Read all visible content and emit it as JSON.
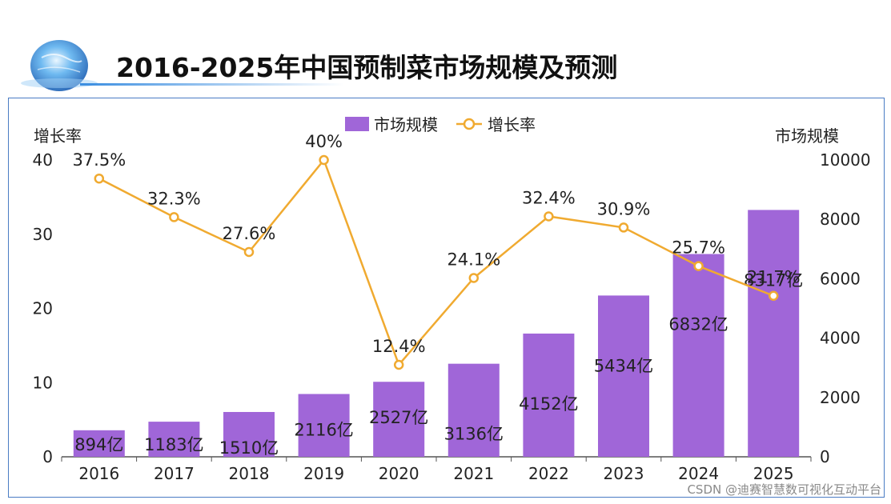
{
  "title": "2016-2025年中国预制菜市场规模及预测",
  "watermark": "CSDN @迪赛智慧数可视化互动平台",
  "colors": {
    "bar": "#a066d8",
    "line": "#f0aa30",
    "axis": "#555555",
    "frame": "#4a7cc4"
  },
  "chart_data": {
    "type": "bar",
    "title": "2016-2025年中国预制菜市场规模及预测",
    "categories": [
      "2016",
      "2017",
      "2018",
      "2019",
      "2020",
      "2021",
      "2022",
      "2023",
      "2024",
      "2025"
    ],
    "series": [
      {
        "name": "市场规模",
        "type": "bar",
        "axis": "right",
        "values": [
          894,
          1183,
          1510,
          2116,
          2527,
          3136,
          4152,
          5434,
          6832,
          8317
        ],
        "labels": [
          "894亿",
          "1183亿",
          "1510亿",
          "2116亿",
          "2527亿",
          "3136亿",
          "4152亿",
          "5434亿",
          "6832亿",
          "8317亿"
        ]
      },
      {
        "name": "增长率",
        "type": "line",
        "axis": "left",
        "values": [
          37.5,
          32.3,
          27.6,
          40,
          12.4,
          24.1,
          32.4,
          30.9,
          25.7,
          21.7
        ],
        "labels": [
          "37.5%",
          "32.3%",
          "27.6%",
          "40%",
          "12.4%",
          "24.1%",
          "32.4%",
          "30.9%",
          "25.7%",
          "21.7%"
        ]
      }
    ],
    "left_axis": {
      "name": "增长率",
      "range": [
        0,
        40
      ],
      "ticks": [
        "0",
        "10",
        "20",
        "30",
        "40"
      ]
    },
    "right_axis": {
      "name": "市场规模",
      "range": [
        0,
        10000
      ],
      "ticks": [
        "0",
        "2000",
        "4000",
        "6000",
        "8000",
        "10000"
      ]
    },
    "legend": {
      "position": "top-center",
      "items": [
        "市场规模",
        "增长率"
      ]
    },
    "grid": false
  }
}
